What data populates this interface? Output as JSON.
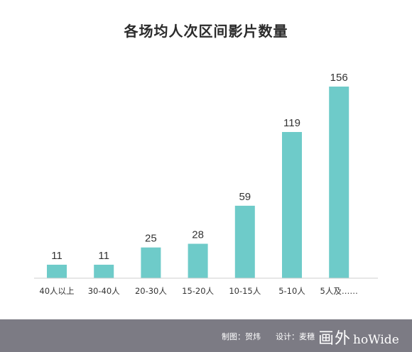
{
  "chart_data": {
    "type": "bar",
    "title": "各场均人次区间影片数量",
    "categories": [
      "40人以上",
      "30-40人",
      "20-30人",
      "15-20人",
      "10-15人",
      "5-10人",
      "5人及……"
    ],
    "values": [
      11,
      11,
      25,
      28,
      59,
      119,
      156
    ],
    "ylim": [
      0,
      156
    ],
    "bar_color": "#6ecbc9",
    "grid": false,
    "legend": "none"
  },
  "footer": {
    "chart_credit": "制图：贺炜",
    "design_credit": "设计：麦穗",
    "brand_cn": "画外",
    "brand_en": "hoWide"
  },
  "colors": {
    "footer_bg": "#7c7b84",
    "bar": "#6ecbc9"
  }
}
